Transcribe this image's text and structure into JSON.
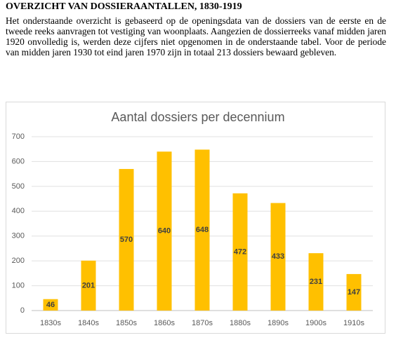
{
  "header": {
    "title": "OVERZICHT VAN DOSSIERAANTALLEN, 1830-1919"
  },
  "body": {
    "paragraph": "Het onderstaande overzicht is gebaseerd op de openingsdata van de dossiers van de eerste en de tweede reeks aanvragen tot vestiging van woonplaats. Aangezien de dossierreeks vanaf midden jaren 1920 onvolledig is, werden deze cijfers niet opgenomen in de onderstaande tabel. Voor de periode van midden jaren 1930 tot eind jaren 1970 zijn in totaal 213 dossiers bewaard gebleven."
  },
  "chart_data": {
    "type": "bar",
    "title": "Aantal dossiers per decennium",
    "categories": [
      "1830s",
      "1840s",
      "1850s",
      "1860s",
      "1870s",
      "1880s",
      "1890s",
      "1900s",
      "1910s"
    ],
    "values": [
      46,
      201,
      570,
      640,
      648,
      472,
      433,
      231,
      147
    ],
    "color": "#ffc000",
    "ylim": [
      0,
      700
    ],
    "yticks": [
      0,
      100,
      200,
      300,
      400,
      500,
      600,
      700
    ],
    "grid": true
  }
}
